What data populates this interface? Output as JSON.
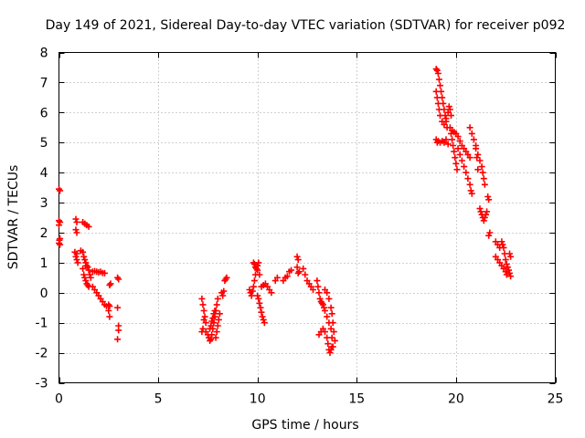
{
  "chart_data": {
    "type": "scatter",
    "title": "Day 149 of 2021, Sidereal Day-to-day VTEC variation (SDTVAR) for receiver p092",
    "xlabel": "GPS time / hours",
    "ylabel": "SDTVAR / TECUs",
    "xlim": [
      0,
      25
    ],
    "ylim": [
      -3,
      8
    ],
    "xticks": [
      0,
      5,
      10,
      15,
      20,
      25
    ],
    "yticks": [
      -3,
      -2,
      -1,
      0,
      1,
      2,
      3,
      4,
      5,
      6,
      7,
      8
    ],
    "xtick_labels": [
      "0",
      "5",
      "10",
      "15",
      "20",
      "25"
    ],
    "ytick_labels": [
      "-3",
      "-2",
      "-1",
      "0",
      "1",
      "2",
      "3",
      "4",
      "5",
      "6",
      "7",
      "8"
    ],
    "grid": true,
    "marker": "+",
    "color": "#ff0000",
    "series": [
      {
        "name": "SDTVAR",
        "points": [
          [
            0.0,
            3.45
          ],
          [
            0.05,
            3.4
          ],
          [
            0.0,
            2.4
          ],
          [
            0.05,
            2.35
          ],
          [
            0.0,
            2.25
          ],
          [
            0.05,
            1.8
          ],
          [
            0.02,
            1.75
          ],
          [
            0.0,
            1.65
          ],
          [
            0.05,
            1.6
          ],
          [
            0.85,
            2.45
          ],
          [
            0.9,
            2.35
          ],
          [
            0.85,
            2.1
          ],
          [
            0.9,
            2.0
          ],
          [
            0.8,
            1.35
          ],
          [
            0.9,
            1.3
          ],
          [
            0.85,
            1.2
          ],
          [
            0.9,
            1.1
          ],
          [
            0.95,
            1.0
          ],
          [
            1.2,
            2.35
          ],
          [
            1.3,
            2.3
          ],
          [
            1.4,
            2.25
          ],
          [
            1.5,
            2.2
          ],
          [
            1.1,
            1.4
          ],
          [
            1.2,
            1.35
          ],
          [
            1.25,
            1.2
          ],
          [
            1.3,
            1.1
          ],
          [
            1.35,
            1.0
          ],
          [
            1.4,
            0.9
          ],
          [
            1.45,
            0.85
          ],
          [
            1.5,
            0.75
          ],
          [
            1.55,
            0.6
          ],
          [
            1.6,
            0.5
          ],
          [
            1.2,
            0.8
          ],
          [
            1.25,
            0.6
          ],
          [
            1.3,
            0.5
          ],
          [
            1.35,
            0.4
          ],
          [
            1.4,
            0.3
          ],
          [
            1.45,
            0.25
          ],
          [
            1.5,
            0.2
          ],
          [
            1.7,
            0.7
          ],
          [
            1.8,
            0.72
          ],
          [
            1.9,
            0.7
          ],
          [
            2.0,
            0.68
          ],
          [
            2.1,
            0.7
          ],
          [
            2.2,
            0.66
          ],
          [
            2.3,
            0.65
          ],
          [
            1.7,
            0.2
          ],
          [
            1.8,
            0.1
          ],
          [
            1.9,
            0.0
          ],
          [
            2.0,
            -0.1
          ],
          [
            2.1,
            -0.2
          ],
          [
            2.2,
            -0.3
          ],
          [
            2.3,
            -0.4
          ],
          [
            2.4,
            -0.45
          ],
          [
            2.5,
            -0.4
          ],
          [
            2.55,
            -0.45
          ],
          [
            2.5,
            -0.6
          ],
          [
            2.55,
            -0.8
          ],
          [
            2.6,
            0.3
          ],
          [
            2.55,
            0.25
          ],
          [
            2.95,
            0.5
          ],
          [
            3.0,
            0.45
          ],
          [
            2.95,
            -0.5
          ],
          [
            3.0,
            -1.1
          ],
          [
            3.0,
            -1.25
          ],
          [
            2.95,
            -1.55
          ],
          [
            7.2,
            -0.2
          ],
          [
            7.25,
            -0.4
          ],
          [
            7.3,
            -0.6
          ],
          [
            7.35,
            -0.8
          ],
          [
            7.4,
            -1.0
          ],
          [
            7.2,
            -1.3
          ],
          [
            7.25,
            -1.2
          ],
          [
            7.3,
            -0.9
          ],
          [
            7.4,
            -1.3
          ],
          [
            7.5,
            -1.4
          ],
          [
            7.55,
            -1.5
          ],
          [
            7.6,
            -1.6
          ],
          [
            7.65,
            -1.55
          ],
          [
            7.7,
            -1.4
          ],
          [
            7.75,
            -1.2
          ],
          [
            7.8,
            -1.0
          ],
          [
            7.85,
            -0.8
          ],
          [
            7.9,
            -0.6
          ],
          [
            7.95,
            -0.4
          ],
          [
            8.0,
            -0.2
          ],
          [
            7.6,
            -1.2
          ],
          [
            7.65,
            -1.1
          ],
          [
            7.7,
            -0.95
          ],
          [
            7.75,
            -0.85
          ],
          [
            7.8,
            -0.7
          ],
          [
            7.85,
            -0.6
          ],
          [
            7.9,
            -1.5
          ],
          [
            7.95,
            -1.3
          ],
          [
            8.0,
            -1.1
          ],
          [
            8.05,
            -0.9
          ],
          [
            8.1,
            -0.7
          ],
          [
            8.2,
            0.0
          ],
          [
            8.25,
            -0.1
          ],
          [
            8.3,
            0.05
          ],
          [
            8.35,
            0.4
          ],
          [
            8.4,
            0.45
          ],
          [
            8.45,
            0.5
          ],
          [
            9.6,
            0.1
          ],
          [
            9.65,
            0.0
          ],
          [
            9.7,
            -0.1
          ],
          [
            9.75,
            0.05
          ],
          [
            9.8,
            0.2
          ],
          [
            9.85,
            0.4
          ],
          [
            9.9,
            0.6
          ],
          [
            9.95,
            0.8
          ],
          [
            10.0,
            0.9
          ],
          [
            10.05,
            1.0
          ],
          [
            9.8,
            1.0
          ],
          [
            9.85,
            0.95
          ],
          [
            9.9,
            0.85
          ],
          [
            10.0,
            0.75
          ],
          [
            10.1,
            0.6
          ],
          [
            10.0,
            -0.1
          ],
          [
            10.05,
            -0.2
          ],
          [
            10.1,
            -0.35
          ],
          [
            10.15,
            -0.5
          ],
          [
            10.2,
            -0.65
          ],
          [
            10.25,
            -0.8
          ],
          [
            10.3,
            -0.9
          ],
          [
            10.35,
            -1.0
          ],
          [
            10.2,
            0.2
          ],
          [
            10.3,
            0.25
          ],
          [
            10.4,
            0.3
          ],
          [
            10.5,
            0.2
          ],
          [
            10.6,
            0.1
          ],
          [
            10.7,
            0.0
          ],
          [
            10.9,
            0.4
          ],
          [
            11.0,
            0.5
          ],
          [
            11.3,
            0.4
          ],
          [
            11.4,
            0.5
          ],
          [
            11.5,
            0.55
          ],
          [
            11.6,
            0.7
          ],
          [
            11.7,
            0.75
          ],
          [
            12.0,
            1.2
          ],
          [
            12.05,
            1.1
          ],
          [
            12.0,
            0.85
          ],
          [
            12.05,
            0.65
          ],
          [
            12.1,
            0.7
          ],
          [
            12.3,
            0.8
          ],
          [
            12.4,
            0.6
          ],
          [
            12.5,
            0.4
          ],
          [
            12.6,
            0.3
          ],
          [
            12.7,
            0.2
          ],
          [
            12.8,
            0.1
          ],
          [
            13.0,
            0.4
          ],
          [
            13.05,
            0.2
          ],
          [
            13.1,
            0.0
          ],
          [
            13.15,
            -0.2
          ],
          [
            13.2,
            -0.3
          ],
          [
            13.25,
            -0.35
          ],
          [
            13.3,
            -0.4
          ],
          [
            13.35,
            -0.5
          ],
          [
            13.4,
            -0.6
          ],
          [
            13.5,
            -0.8
          ],
          [
            13.6,
            -1.0
          ],
          [
            13.7,
            -1.2
          ],
          [
            13.75,
            -1.5
          ],
          [
            13.8,
            -1.8
          ],
          [
            13.1,
            -1.4
          ],
          [
            13.2,
            -1.3
          ],
          [
            13.3,
            -1.2
          ],
          [
            13.4,
            -1.3
          ],
          [
            13.5,
            -1.5
          ],
          [
            13.55,
            -1.7
          ],
          [
            13.6,
            -1.9
          ],
          [
            13.65,
            -2.0
          ],
          [
            13.7,
            -1.9
          ],
          [
            13.75,
            -1.8
          ],
          [
            13.4,
            0.1
          ],
          [
            13.5,
            0.0
          ],
          [
            13.6,
            -0.2
          ],
          [
            13.7,
            -0.5
          ],
          [
            13.75,
            -0.7
          ],
          [
            13.8,
            -1.0
          ],
          [
            13.85,
            -1.3
          ],
          [
            13.9,
            -1.6
          ],
          [
            19.0,
            7.45
          ],
          [
            19.05,
            7.4
          ],
          [
            19.1,
            7.3
          ],
          [
            19.15,
            7.1
          ],
          [
            19.2,
            6.9
          ],
          [
            19.25,
            6.7
          ],
          [
            19.3,
            6.5
          ],
          [
            19.35,
            6.3
          ],
          [
            19.4,
            6.1
          ],
          [
            19.45,
            5.9
          ],
          [
            19.5,
            5.7
          ],
          [
            19.55,
            5.5
          ],
          [
            19.0,
            6.7
          ],
          [
            19.05,
            6.5
          ],
          [
            19.1,
            6.3
          ],
          [
            19.15,
            6.1
          ],
          [
            19.2,
            5.9
          ],
          [
            19.3,
            5.7
          ],
          [
            19.4,
            5.6
          ],
          [
            19.5,
            5.8
          ],
          [
            19.6,
            6.0
          ],
          [
            19.65,
            6.2
          ],
          [
            19.7,
            6.1
          ],
          [
            19.75,
            5.9
          ],
          [
            19.0,
            5.1
          ],
          [
            19.05,
            5.0
          ],
          [
            19.1,
            5.05
          ],
          [
            19.2,
            5.0
          ],
          [
            19.3,
            5.05
          ],
          [
            19.4,
            5.0
          ],
          [
            19.5,
            5.1
          ],
          [
            19.6,
            4.95
          ],
          [
            19.7,
            5.5
          ],
          [
            19.75,
            5.3
          ],
          [
            19.8,
            5.1
          ],
          [
            19.85,
            4.9
          ],
          [
            19.9,
            4.7
          ],
          [
            19.95,
            4.5
          ],
          [
            20.0,
            4.3
          ],
          [
            20.05,
            4.1
          ],
          [
            19.8,
            5.4
          ],
          [
            19.9,
            5.35
          ],
          [
            20.0,
            5.3
          ],
          [
            20.1,
            5.2
          ],
          [
            20.2,
            5.05
          ],
          [
            20.3,
            4.9
          ],
          [
            20.4,
            4.8
          ],
          [
            20.5,
            4.7
          ],
          [
            20.6,
            4.6
          ],
          [
            20.7,
            4.5
          ],
          [
            20.1,
            4.8
          ],
          [
            20.2,
            4.6
          ],
          [
            20.3,
            4.4
          ],
          [
            20.4,
            4.2
          ],
          [
            20.5,
            4.0
          ],
          [
            20.6,
            3.8
          ],
          [
            20.7,
            3.6
          ],
          [
            20.75,
            3.4
          ],
          [
            20.8,
            3.3
          ],
          [
            20.7,
            5.5
          ],
          [
            20.8,
            5.3
          ],
          [
            20.9,
            5.1
          ],
          [
            21.0,
            4.9
          ],
          [
            21.1,
            4.6
          ],
          [
            21.2,
            4.4
          ],
          [
            21.3,
            4.2
          ],
          [
            21.35,
            4.0
          ],
          [
            21.4,
            3.8
          ],
          [
            21.45,
            3.6
          ],
          [
            21.0,
            4.8
          ],
          [
            21.05,
            4.5
          ],
          [
            21.1,
            4.1
          ],
          [
            21.2,
            2.8
          ],
          [
            21.25,
            2.7
          ],
          [
            21.3,
            2.6
          ],
          [
            21.35,
            2.5
          ],
          [
            21.4,
            2.4
          ],
          [
            21.45,
            2.5
          ],
          [
            21.5,
            2.6
          ],
          [
            21.55,
            2.7
          ],
          [
            21.6,
            3.2
          ],
          [
            21.65,
            3.1
          ],
          [
            21.7,
            2.0
          ],
          [
            21.65,
            1.9
          ],
          [
            22.0,
            1.7
          ],
          [
            22.1,
            1.6
          ],
          [
            22.2,
            1.5
          ],
          [
            22.3,
            1.7
          ],
          [
            22.35,
            1.6
          ],
          [
            22.0,
            1.2
          ],
          [
            22.1,
            1.1
          ],
          [
            22.2,
            1.0
          ],
          [
            22.3,
            0.9
          ],
          [
            22.4,
            0.8
          ],
          [
            22.5,
            0.7
          ],
          [
            22.55,
            0.6
          ],
          [
            22.4,
            1.5
          ],
          [
            22.45,
            1.3
          ],
          [
            22.5,
            1.1
          ],
          [
            22.55,
            0.95
          ],
          [
            22.6,
            0.85
          ],
          [
            22.65,
            0.75
          ],
          [
            22.7,
            0.65
          ],
          [
            22.75,
            0.55
          ],
          [
            22.7,
            1.3
          ],
          [
            22.75,
            1.2
          ]
        ]
      }
    ]
  }
}
